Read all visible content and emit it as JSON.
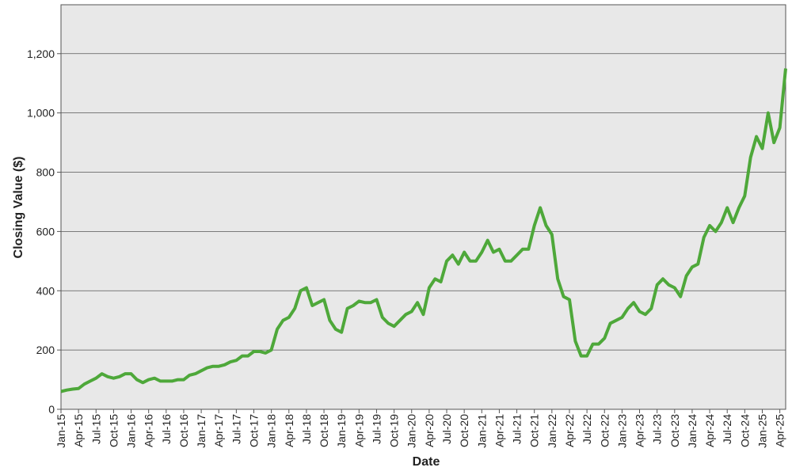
{
  "chart_data": {
    "type": "line",
    "x_label": "Date",
    "y_label": "Closing Value ($)",
    "x": [
      "2015-01",
      "2015-02",
      "2015-03",
      "2015-04",
      "2015-05",
      "2015-06",
      "2015-07",
      "2015-08",
      "2015-09",
      "2015-10",
      "2015-11",
      "2015-12",
      "2016-01",
      "2016-02",
      "2016-03",
      "2016-04",
      "2016-05",
      "2016-06",
      "2016-07",
      "2016-08",
      "2016-09",
      "2016-10",
      "2016-11",
      "2016-12",
      "2017-01",
      "2017-02",
      "2017-03",
      "2017-04",
      "2017-05",
      "2017-06",
      "2017-07",
      "2017-08",
      "2017-09",
      "2017-10",
      "2017-11",
      "2017-12",
      "2018-01",
      "2018-02",
      "2018-03",
      "2018-04",
      "2018-05",
      "2018-06",
      "2018-07",
      "2018-08",
      "2018-09",
      "2018-10",
      "2018-11",
      "2018-12",
      "2019-01",
      "2019-02",
      "2019-03",
      "2019-04",
      "2019-05",
      "2019-06",
      "2019-07",
      "2019-08",
      "2019-09",
      "2019-10",
      "2019-11",
      "2019-12",
      "2020-01",
      "2020-02",
      "2020-03",
      "2020-04",
      "2020-05",
      "2020-06",
      "2020-07",
      "2020-08",
      "2020-09",
      "2020-10",
      "2020-11",
      "2020-12",
      "2021-01",
      "2021-02",
      "2021-03",
      "2021-04",
      "2021-05",
      "2021-06",
      "2021-07",
      "2021-08",
      "2021-09",
      "2021-10",
      "2021-11",
      "2021-12",
      "2022-01",
      "2022-02",
      "2022-03",
      "2022-04",
      "2022-05",
      "2022-06",
      "2022-07",
      "2022-08",
      "2022-09",
      "2022-10",
      "2022-11",
      "2022-12",
      "2023-01",
      "2023-02",
      "2023-03",
      "2023-04",
      "2023-05",
      "2023-06",
      "2023-07",
      "2023-08",
      "2023-09",
      "2023-10",
      "2023-11",
      "2023-12",
      "2024-01",
      "2024-02",
      "2024-03",
      "2024-04",
      "2024-05",
      "2024-06",
      "2024-07",
      "2024-08",
      "2024-09",
      "2024-10",
      "2024-11",
      "2024-12",
      "2025-01",
      "2025-02",
      "2025-03",
      "2025-04",
      "2025-05"
    ],
    "series": [
      {
        "name": "Closing Value",
        "color": "#4ea83a",
        "values": [
          60,
          65,
          68,
          70,
          85,
          95,
          105,
          120,
          110,
          105,
          110,
          120,
          120,
          100,
          90,
          100,
          105,
          95,
          95,
          95,
          100,
          100,
          115,
          120,
          130,
          140,
          145,
          145,
          150,
          160,
          165,
          180,
          180,
          195,
          195,
          190,
          200,
          270,
          300,
          310,
          340,
          400,
          410,
          350,
          360,
          370,
          300,
          270,
          260,
          340,
          350,
          365,
          360,
          360,
          370,
          310,
          290,
          280,
          300,
          320,
          330,
          360,
          320,
          410,
          440,
          430,
          500,
          520,
          490,
          530,
          500,
          500,
          530,
          570,
          530,
          540,
          500,
          500,
          520,
          540,
          540,
          620,
          680,
          620,
          590,
          440,
          380,
          370,
          230,
          180,
          180,
          220,
          220,
          240,
          290,
          300,
          310,
          340,
          360,
          330,
          320,
          340,
          420,
          440,
          420,
          410,
          380,
          450,
          480,
          490,
          580,
          620,
          600,
          630,
          680,
          630,
          680,
          720,
          850,
          920,
          880,
          1000,
          900,
          950,
          1150
        ]
      }
    ],
    "xlim": [
      "2015-01",
      "2025-05"
    ],
    "xticks": [
      {
        "value": "2015-01",
        "label": "Jan-15"
      },
      {
        "value": "2015-04",
        "label": "Apr-15"
      },
      {
        "value": "2015-07",
        "label": "Jul-15"
      },
      {
        "value": "2015-10",
        "label": "Oct-15"
      },
      {
        "value": "2016-01",
        "label": "Jan-16"
      },
      {
        "value": "2016-04",
        "label": "Apr-16"
      },
      {
        "value": "2016-07",
        "label": "Jul-16"
      },
      {
        "value": "2016-10",
        "label": "Oct-16"
      },
      {
        "value": "2017-01",
        "label": "Jan-17"
      },
      {
        "value": "2017-04",
        "label": "Apr-17"
      },
      {
        "value": "2017-07",
        "label": "Jul-17"
      },
      {
        "value": "2017-10",
        "label": "Oct-17"
      },
      {
        "value": "2018-01",
        "label": "Jan-18"
      },
      {
        "value": "2018-04",
        "label": "Apr-18"
      },
      {
        "value": "2018-07",
        "label": "Jul-18"
      },
      {
        "value": "2018-10",
        "label": "Oct-18"
      },
      {
        "value": "2019-01",
        "label": "Jan-19"
      },
      {
        "value": "2019-04",
        "label": "Apr-19"
      },
      {
        "value": "2019-07",
        "label": "Jul-19"
      },
      {
        "value": "2019-10",
        "label": "Oct-19"
      },
      {
        "value": "2020-01",
        "label": "Jan-20"
      },
      {
        "value": "2020-04",
        "label": "Apr-20"
      },
      {
        "value": "2020-07",
        "label": "Jul-20"
      },
      {
        "value": "2020-10",
        "label": "Oct-20"
      },
      {
        "value": "2021-01",
        "label": "Jan-21"
      },
      {
        "value": "2021-04",
        "label": "Apr-21"
      },
      {
        "value": "2021-07",
        "label": "Jul-21"
      },
      {
        "value": "2021-10",
        "label": "Oct-21"
      },
      {
        "value": "2022-01",
        "label": "Jan-22"
      },
      {
        "value": "2022-04",
        "label": "Apr-22"
      },
      {
        "value": "2022-07",
        "label": "Jul-22"
      },
      {
        "value": "2022-10",
        "label": "Oct-22"
      },
      {
        "value": "2023-01",
        "label": "Jan-23"
      },
      {
        "value": "2023-04",
        "label": "Apr-23"
      },
      {
        "value": "2023-07",
        "label": "Jul-23"
      },
      {
        "value": "2023-10",
        "label": "Oct-23"
      },
      {
        "value": "2024-01",
        "label": "Jan-24"
      },
      {
        "value": "2024-04",
        "label": "Apr-24"
      },
      {
        "value": "2024-07",
        "label": "Jul-24"
      },
      {
        "value": "2024-10",
        "label": "Oct-24"
      },
      {
        "value": "2025-01",
        "label": "Jan-25"
      },
      {
        "value": "2025-04",
        "label": "Apr-25"
      }
    ],
    "ylim": [
      0,
      1365
    ],
    "yticks": [
      0,
      200,
      400,
      600,
      800,
      {
        "value": 1000,
        "label": "1,000"
      },
      {
        "value": 1200,
        "label": "1,200"
      }
    ],
    "grid": true
  }
}
